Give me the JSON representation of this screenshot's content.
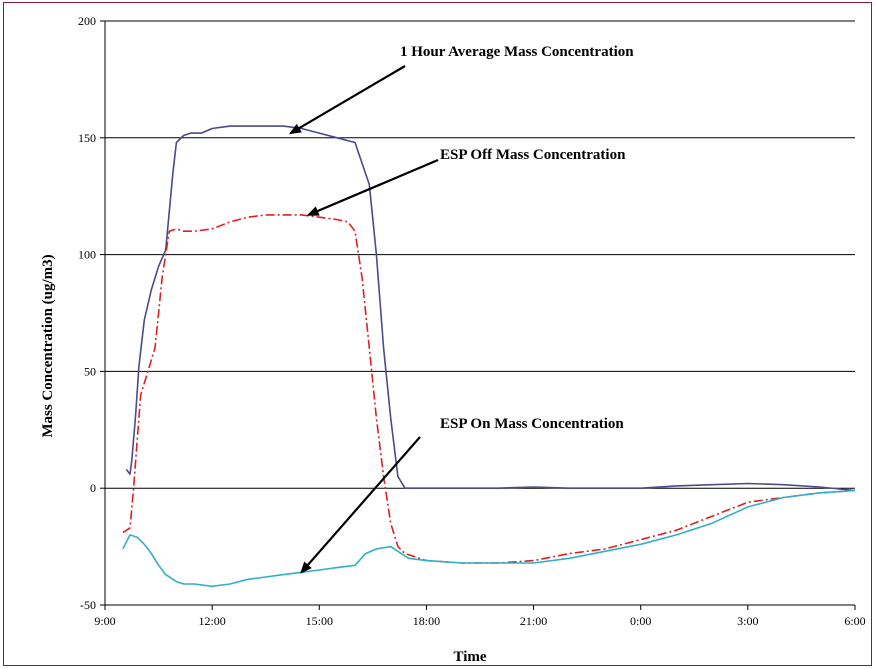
{
  "chart_data": {
    "type": "line",
    "title": "",
    "xlabel": "Time",
    "ylabel": "Mass Concentration (ug/m3)",
    "ylim": [
      -50,
      200
    ],
    "y_ticks": [
      -50,
      0,
      50,
      100,
      150,
      200
    ],
    "x_tick_labels": [
      "9:00",
      "12:00",
      "15:00",
      "18:00",
      "21:00",
      "0:00",
      "3:00",
      "6:00"
    ],
    "x_units": "hours since 9:00",
    "xlim": [
      0,
      21
    ],
    "grid": "horizontal",
    "legend": "none",
    "series": [
      {
        "name": "1 Hour Average Mass Concentration",
        "color": "#4a4a8c",
        "style": "solid",
        "x": [
          0.6,
          0.7,
          0.75,
          0.85,
          0.95,
          1.1,
          1.3,
          1.5,
          1.7,
          1.9,
          2.0,
          2.2,
          2.4,
          2.7,
          3.0,
          3.5,
          4.0,
          4.5,
          5.0,
          5.5,
          6.0,
          6.5,
          7.0,
          7.4,
          7.6,
          7.8,
          8.0,
          8.2,
          8.4,
          8.6,
          8.8,
          9.0,
          10,
          11,
          12,
          13,
          14,
          15,
          16,
          17,
          18,
          19,
          20,
          21
        ],
        "y": [
          8,
          6,
          12,
          30,
          52,
          72,
          85,
          95,
          102,
          135,
          148,
          151,
          152,
          152,
          154,
          155,
          155,
          155,
          155,
          154,
          152,
          150,
          148,
          130,
          100,
          60,
          30,
          5,
          0,
          0,
          0,
          0,
          0,
          0,
          0.5,
          0,
          0,
          0,
          1,
          1.5,
          2,
          1.5,
          0.5,
          -1
        ]
      },
      {
        "name": "ESP Off Mass Concentration",
        "color": "#e02020",
        "style": "dashdot",
        "x": [
          0.5,
          0.7,
          0.8,
          0.9,
          1.0,
          1.2,
          1.4,
          1.6,
          1.8,
          2.0,
          2.2,
          2.5,
          3.0,
          3.5,
          4.0,
          4.5,
          5.0,
          5.5,
          6.0,
          6.5,
          6.8,
          7.0,
          7.2,
          7.4,
          7.6,
          7.8,
          8.0,
          8.2,
          8.4,
          8.6,
          9,
          10,
          11,
          12,
          13,
          14,
          15,
          16,
          17,
          18,
          19,
          20,
          21
        ],
        "y": [
          -19,
          -17,
          0,
          20,
          40,
          50,
          60,
          90,
          110,
          111,
          110,
          110,
          111,
          114,
          116,
          117,
          117,
          117,
          116,
          115,
          114,
          110,
          90,
          60,
          30,
          5,
          -15,
          -25,
          -28,
          -29,
          -31,
          -32,
          -32,
          -31,
          -28,
          -26,
          -22,
          -18,
          -12,
          -6,
          -4,
          -2,
          -1
        ]
      },
      {
        "name": "ESP On Mass Concentration",
        "color": "#30b0c8",
        "style": "solid",
        "x": [
          0.5,
          0.7,
          0.9,
          1.1,
          1.3,
          1.5,
          1.7,
          2.0,
          2.2,
          2.5,
          3.0,
          3.5,
          4.0,
          4.5,
          5.0,
          5.5,
          6.0,
          6.5,
          7.0,
          7.3,
          7.6,
          8.0,
          8.2,
          8.5,
          9,
          10,
          11,
          12,
          13,
          14,
          15,
          16,
          17,
          18,
          19,
          20,
          21
        ],
        "y": [
          -26,
          -20,
          -21,
          -24,
          -28,
          -33,
          -37,
          -40,
          -41,
          -41,
          -42,
          -41,
          -39,
          -38,
          -37,
          -36,
          -35,
          -34,
          -33,
          -28,
          -26,
          -25,
          -27,
          -30,
          -31,
          -32,
          -32,
          -32,
          -30,
          -27,
          -24,
          -20,
          -15,
          -8,
          -4,
          -2,
          -1
        ]
      }
    ],
    "annotations": [
      {
        "text": "1 Hour Average Mass Concentration",
        "points_to_x": 5.2,
        "points_to_y": 152
      },
      {
        "text": "ESP Off Mass Concentration",
        "points_to_x": 5.7,
        "points_to_y": 117
      },
      {
        "text": "ESP On Mass Concentration",
        "points_to_x": 5.5,
        "points_to_y": -36
      }
    ]
  }
}
